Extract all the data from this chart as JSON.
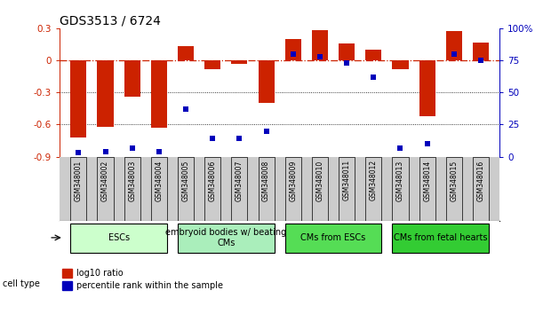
{
  "title": "GDS3513 / 6724",
  "samples": [
    "GSM348001",
    "GSM348002",
    "GSM348003",
    "GSM348004",
    "GSM348005",
    "GSM348006",
    "GSM348007",
    "GSM348008",
    "GSM348009",
    "GSM348010",
    "GSM348011",
    "GSM348012",
    "GSM348013",
    "GSM348014",
    "GSM348015",
    "GSM348016"
  ],
  "log10_ratio": [
    -0.72,
    -0.62,
    -0.34,
    -0.63,
    0.13,
    -0.08,
    -0.03,
    -0.4,
    0.2,
    0.28,
    0.16,
    0.1,
    -0.08,
    -0.52,
    0.27,
    0.17
  ],
  "percentile_rank": [
    3,
    4,
    7,
    4,
    37,
    14,
    14,
    20,
    80,
    78,
    73,
    62,
    7,
    10,
    80,
    75
  ],
  "ylim": [
    -0.9,
    0.3
  ],
  "yticks_left": [
    -0.9,
    -0.6,
    -0.3,
    0.0,
    0.3
  ],
  "yticks_right": [
    0,
    25,
    50,
    75,
    100
  ],
  "ytick_right_labels": [
    "0",
    "25",
    "50",
    "75",
    "100%"
  ],
  "bar_color": "#CC2200",
  "dot_color": "#0000BB",
  "zero_line_color": "#CC2200",
  "hline_color": "#000000",
  "cell_types": [
    {
      "label": "ESCs",
      "start": 0,
      "end": 3,
      "color": "#CCFFCC"
    },
    {
      "label": "embryoid bodies w/ beating\nCMs",
      "start": 4,
      "end": 7,
      "color": "#AAEEBB"
    },
    {
      "label": "CMs from ESCs",
      "start": 8,
      "end": 11,
      "color": "#55DD55"
    },
    {
      "label": "CMs from fetal hearts",
      "start": 12,
      "end": 15,
      "color": "#33CC33"
    }
  ],
  "cell_type_label": "cell type",
  "legend_red_label": "log10 ratio",
  "legend_blue_label": "percentile rank within the sample",
  "bar_width": 0.6,
  "label_bg_color": "#CCCCCC",
  "title_fontsize": 10,
  "tick_fontsize": 7.5,
  "sample_fontsize": 5.5,
  "celltype_fontsize": 7
}
